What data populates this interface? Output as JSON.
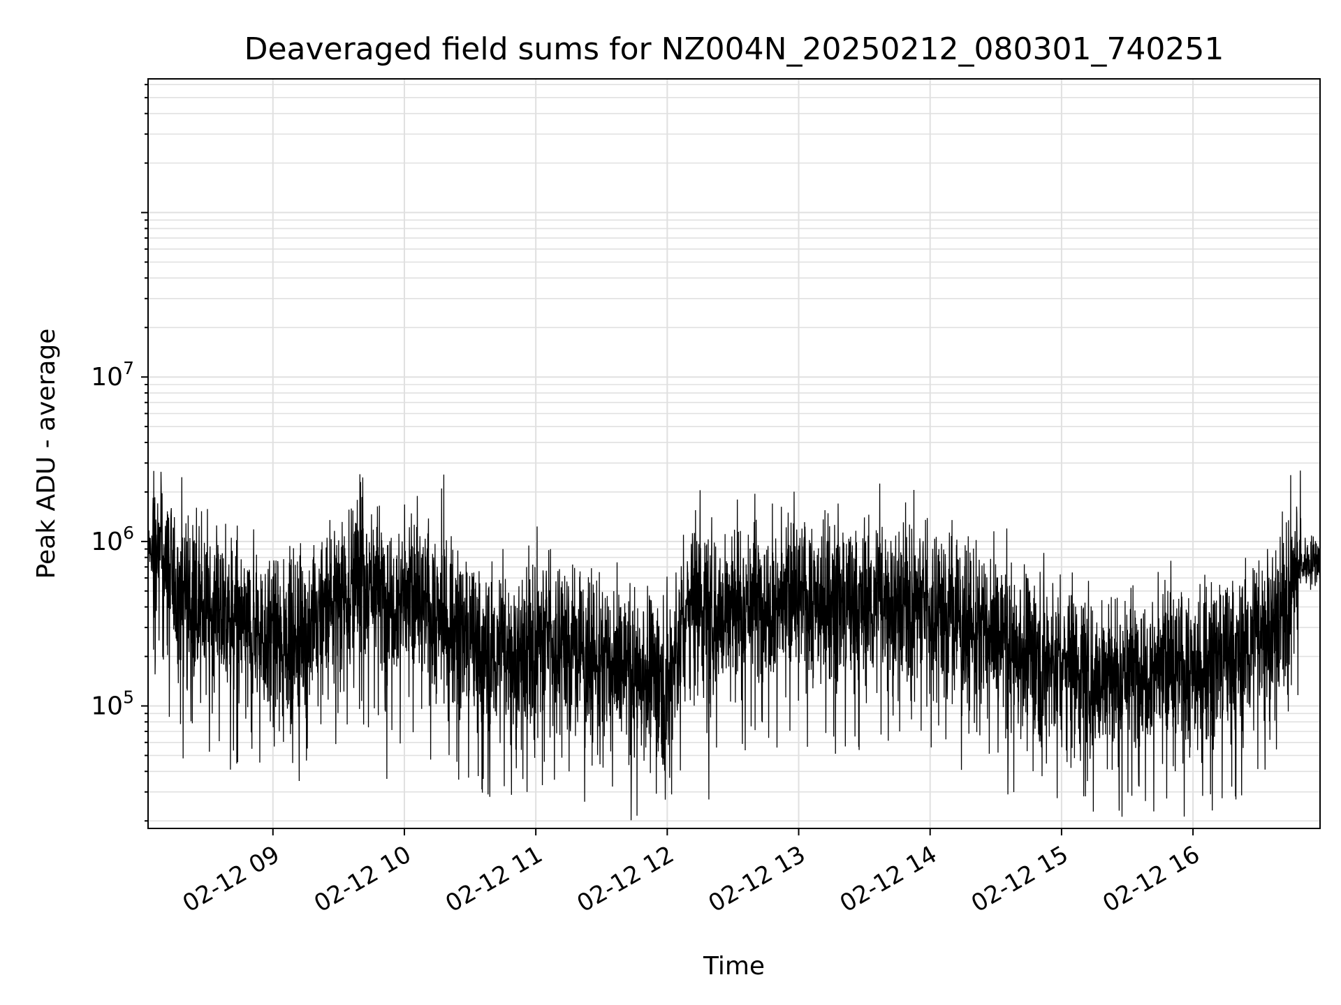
{
  "chart_data": {
    "type": "line",
    "title": "Deaveraged field sums for NZ004N_20250212_080301_740251",
    "xlabel": "Time",
    "ylabel": "Peak ADU - average",
    "yscale": "log",
    "ylim": [
      18000,
      650000000
    ],
    "xlim": [
      "2025-02-12 08:03",
      "2025-02-12 16:58"
    ],
    "grid": true,
    "line_color": "#000000",
    "grid_color": "#e0e0e0",
    "x_ticks": [
      "02-12 09",
      "02-12 10",
      "02-12 11",
      "02-12 12",
      "02-12 13",
      "02-12 14",
      "02-12 15",
      "02-12 16"
    ],
    "y_ticks": [
      {
        "value": 100000,
        "base": "10",
        "exp": "5"
      },
      {
        "value": 1000000,
        "base": "10",
        "exp": "6"
      },
      {
        "value": 10000000,
        "base": "10",
        "exp": "7"
      }
    ],
    "series": [
      {
        "profile": [
          [
            "2025-02-12 08:03",
            950000
          ],
          [
            "2025-02-12 08:10",
            700000
          ],
          [
            "2025-02-12 08:20",
            450000
          ],
          [
            "2025-02-12 08:35",
            350000
          ],
          [
            "2025-02-12 08:50",
            300000
          ],
          [
            "2025-02-12 09:05",
            260000
          ],
          [
            "2025-02-12 09:20",
            300000
          ],
          [
            "2025-02-12 09:30",
            480000
          ],
          [
            "2025-02-12 09:40",
            600000
          ],
          [
            "2025-02-12 09:50",
            500000
          ],
          [
            "2025-02-12 10:05",
            430000
          ],
          [
            "2025-02-12 10:20",
            300000
          ],
          [
            "2025-02-12 10:35",
            220000
          ],
          [
            "2025-02-12 10:50",
            200000
          ],
          [
            "2025-02-12 11:05",
            280000
          ],
          [
            "2025-02-12 11:20",
            220000
          ],
          [
            "2025-02-12 11:35",
            170000
          ],
          [
            "2025-02-12 11:50",
            160000
          ],
          [
            "2025-02-12 12:00",
            140000
          ],
          [
            "2025-02-12 12:10",
            420000
          ],
          [
            "2025-02-12 12:25",
            380000
          ],
          [
            "2025-02-12 12:40",
            420000
          ],
          [
            "2025-02-12 13:00",
            450000
          ],
          [
            "2025-02-12 13:20",
            380000
          ],
          [
            "2025-02-12 13:40",
            430000
          ],
          [
            "2025-02-12 14:00",
            420000
          ],
          [
            "2025-02-12 14:20",
            300000
          ],
          [
            "2025-02-12 14:40",
            220000
          ],
          [
            "2025-02-12 15:00",
            180000
          ],
          [
            "2025-02-12 15:20",
            150000
          ],
          [
            "2025-02-12 15:40",
            180000
          ],
          [
            "2025-02-12 16:00",
            160000
          ],
          [
            "2025-02-12 16:20",
            200000
          ],
          [
            "2025-02-12 16:40",
            350000
          ],
          [
            "2025-02-12 16:48",
            700000
          ],
          [
            "2025-02-12 16:58",
            800000
          ]
        ],
        "peaks": [
          [
            "2025-02-12 09:26",
            1350000
          ],
          [
            "2025-02-12 09:40",
            2300000
          ],
          [
            "2025-02-12 09:41",
            2450000
          ],
          [
            "2025-02-12 09:59",
            1000000
          ],
          [
            "2025-02-12 10:11",
            1380000
          ],
          [
            "2025-02-12 10:17",
            2100000
          ],
          [
            "2025-02-12 10:18",
            2550000
          ],
          [
            "2025-02-12 10:45",
            900000
          ],
          [
            "2025-02-12 12:15",
            2050000
          ],
          [
            "2025-02-12 12:32",
            1800000
          ],
          [
            "2025-02-12 12:40",
            1950000
          ],
          [
            "2025-02-12 12:48",
            1700000
          ],
          [
            "2025-02-12 13:12",
            1550000
          ],
          [
            "2025-02-12 13:18",
            1700000
          ],
          [
            "2025-02-12 13:30",
            1400000
          ],
          [
            "2025-02-12 13:37",
            2250000
          ],
          [
            "2025-02-12 14:10",
            1350000
          ],
          [
            "2025-02-12 14:35",
            1200000
          ],
          [
            "2025-02-12 16:34",
            900000
          ],
          [
            "2025-02-12 16:49",
            2700000
          ]
        ],
        "troughs": [
          [
            "2025-02-12 08:19",
            48000
          ],
          [
            "2025-02-12 09:09",
            45000
          ],
          [
            "2025-02-12 09:12",
            35000
          ],
          [
            "2025-02-12 09:52",
            36000
          ],
          [
            "2025-02-12 10:36",
            36000
          ],
          [
            "2025-02-12 10:39",
            28000
          ],
          [
            "2025-02-12 10:56",
            30000
          ],
          [
            "2025-02-12 11:03",
            33000
          ],
          [
            "2025-02-12 12:02",
            29000
          ],
          [
            "2025-02-12 12:19",
            27000
          ],
          [
            "2025-02-12 14:31",
            52000
          ],
          [
            "2025-02-12 15:51",
            43000
          ]
        ]
      }
    ]
  }
}
